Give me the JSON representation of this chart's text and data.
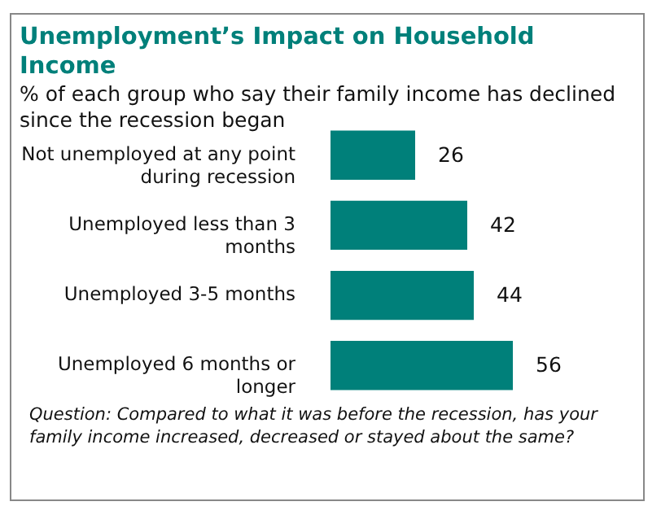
{
  "chart_data": {
    "type": "bar",
    "orientation": "horizontal",
    "title": "Unemployment’s Impact on Household Income",
    "subtitle": "% of each group who say their family income has declined since the recession began",
    "categories": [
      "Not unemployed at any point during recession",
      "Unemployed less than 3 months",
      "Unemployed 3-5 months",
      "Unemployed 6 months or longer"
    ],
    "values": [
      26,
      42,
      44,
      56
    ],
    "color": "#00807a",
    "data_labels": true,
    "annotations": [
      "Question: Compared to what it was before the recession, has your family income increased, decreased or stayed about the same?"
    ]
  }
}
